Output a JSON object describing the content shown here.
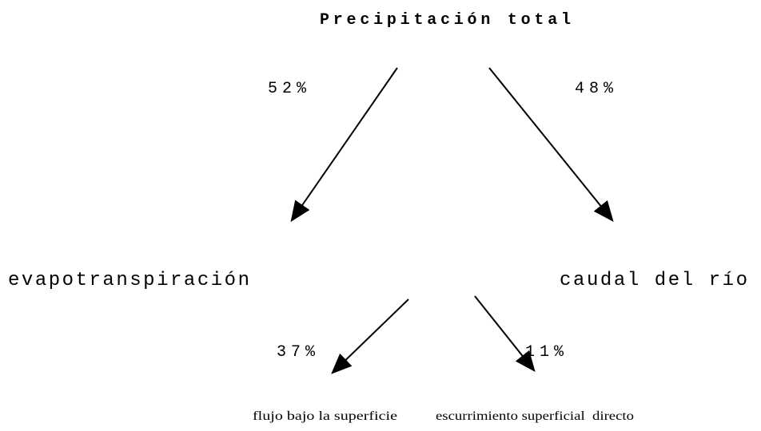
{
  "title": "Precipitación total",
  "nodes": [
    {
      "label": "evapotranspiración"
    },
    {
      "label": "caudal del río"
    },
    {
      "label": "flujo bajo la superficie"
    },
    {
      "label": "escurrimiento superficial  directo"
    }
  ],
  "edges": [
    {
      "label": "52%"
    },
    {
      "label": "48%"
    },
    {
      "label": "37%"
    },
    {
      "label": "11%"
    }
  ]
}
